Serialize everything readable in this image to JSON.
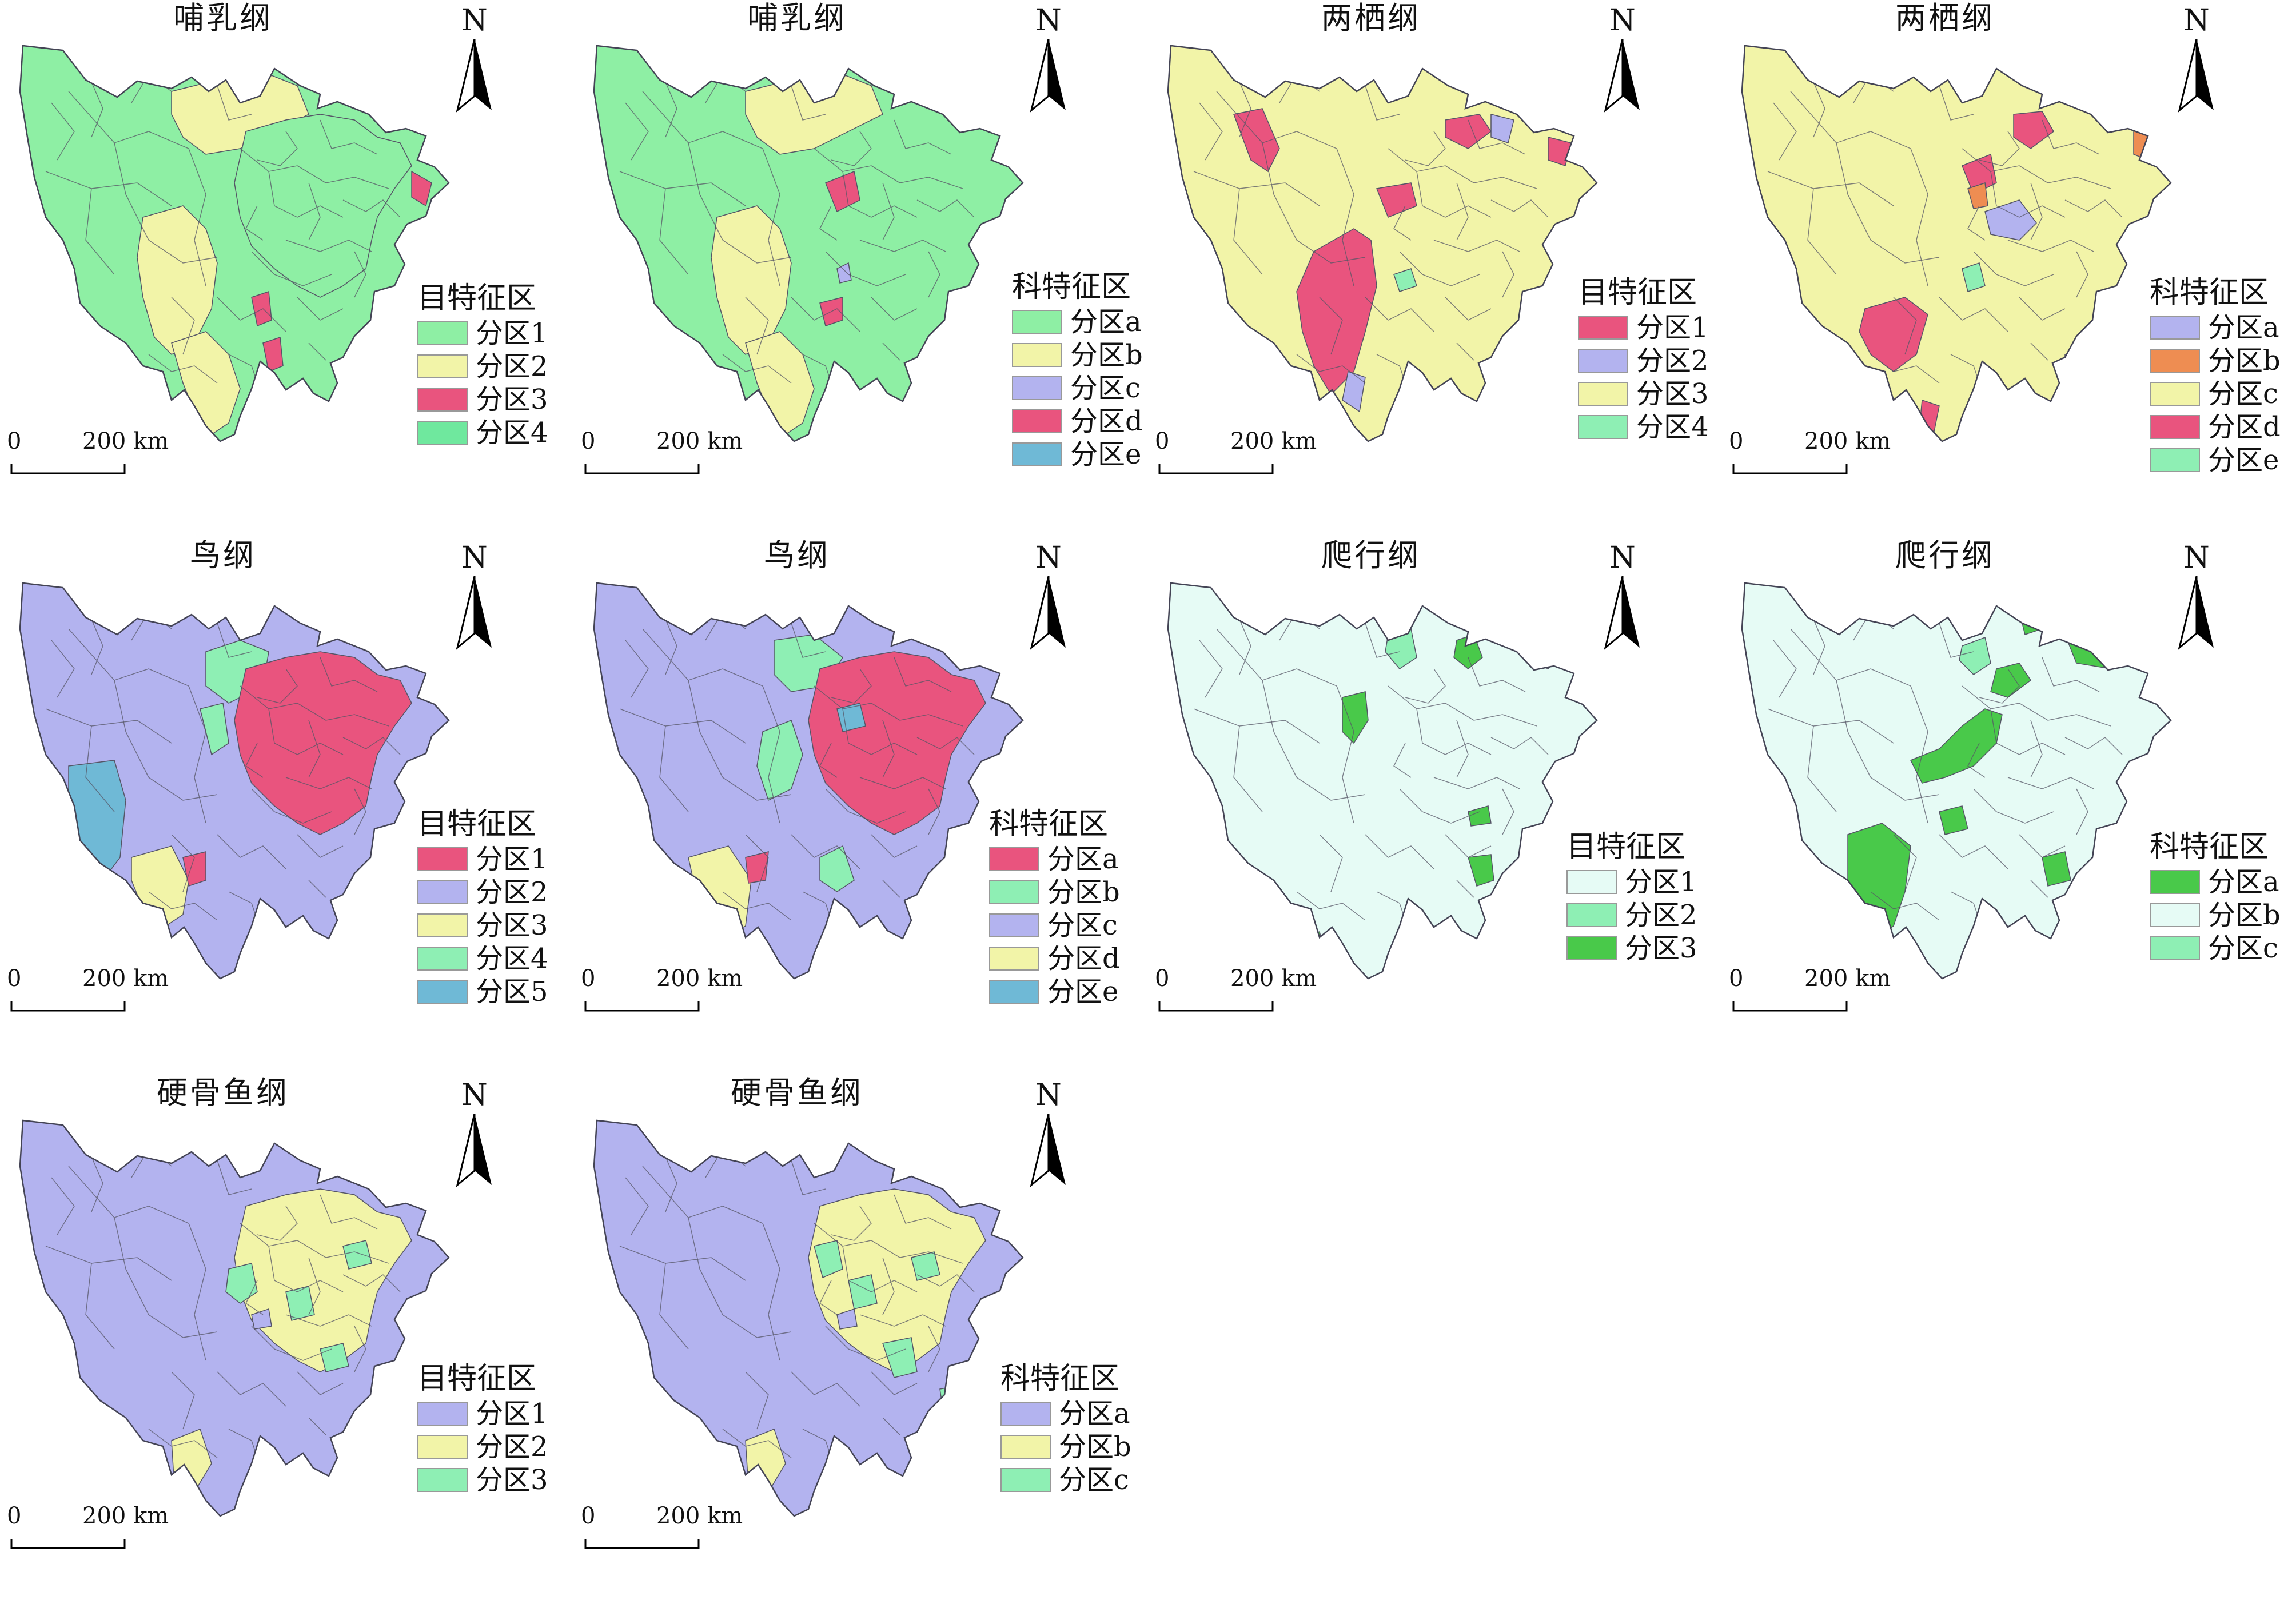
{
  "colors": {
    "mint": "#8eefa4",
    "yellow": "#f2f4a8",
    "pink": "#e9547e",
    "lavender": "#b3b3ef",
    "teal": "#6fb9d6",
    "orange": "#ee8d52",
    "green": "#49c94a",
    "pale": "#e6fbf5",
    "boundary": "#555566"
  },
  "scale_bar": {
    "zero": "0",
    "length_label": "200 km"
  },
  "north_label": "N",
  "panels": [
    {
      "title": "哺乳纲",
      "legend_title": "目特征区",
      "entries": [
        {
          "label": "分区1",
          "color": "#8eefa4"
        },
        {
          "label": "分区2",
          "color": "#f2f4a8"
        },
        {
          "label": "分区3",
          "color": "#e9547e"
        },
        {
          "label": "分区4",
          "color": "#6fe89e"
        }
      ]
    },
    {
      "title": "哺乳纲",
      "legend_title": "科特征区",
      "entries": [
        {
          "label": "分区a",
          "color": "#8eefa4"
        },
        {
          "label": "分区b",
          "color": "#f2f4a8"
        },
        {
          "label": "分区c",
          "color": "#b3b3ef"
        },
        {
          "label": "分区d",
          "color": "#e9547e"
        },
        {
          "label": "分区e",
          "color": "#6fb9d6"
        }
      ]
    },
    {
      "title": "两栖纲",
      "legend_title": "目特征区",
      "entries": [
        {
          "label": "分区1",
          "color": "#e9547e"
        },
        {
          "label": "分区2",
          "color": "#b3b3ef"
        },
        {
          "label": "分区3",
          "color": "#f2f4a8"
        },
        {
          "label": "分区4",
          "color": "#8eefb4"
        }
      ]
    },
    {
      "title": "两栖纲",
      "legend_title": "科特征区",
      "entries": [
        {
          "label": "分区a",
          "color": "#b3b3ef"
        },
        {
          "label": "分区b",
          "color": "#ee8d52"
        },
        {
          "label": "分区c",
          "color": "#f2f4a8"
        },
        {
          "label": "分区d",
          "color": "#e9547e"
        },
        {
          "label": "分区e",
          "color": "#8eefb4"
        }
      ]
    },
    {
      "title": "鸟纲",
      "legend_title": "目特征区",
      "entries": [
        {
          "label": "分区1",
          "color": "#e9547e"
        },
        {
          "label": "分区2",
          "color": "#b3b3ef"
        },
        {
          "label": "分区3",
          "color": "#f2f4a8"
        },
        {
          "label": "分区4",
          "color": "#8eefb4"
        },
        {
          "label": "分区5",
          "color": "#6fb9d6"
        }
      ]
    },
    {
      "title": "鸟纲",
      "legend_title": "科特征区",
      "entries": [
        {
          "label": "分区a",
          "color": "#e9547e"
        },
        {
          "label": "分区b",
          "color": "#8eefb4"
        },
        {
          "label": "分区c",
          "color": "#b3b3ef"
        },
        {
          "label": "分区d",
          "color": "#f2f4a8"
        },
        {
          "label": "分区e",
          "color": "#6fb9d6"
        }
      ]
    },
    {
      "title": "爬行纲",
      "legend_title": "目特征区",
      "entries": [
        {
          "label": "分区1",
          "color": "#e6fbf5"
        },
        {
          "label": "分区2",
          "color": "#8eefb4"
        },
        {
          "label": "分区3",
          "color": "#49c94a"
        }
      ]
    },
    {
      "title": "爬行纲",
      "legend_title": "科特征区",
      "entries": [
        {
          "label": "分区a",
          "color": "#49c94a"
        },
        {
          "label": "分区b",
          "color": "#e6fbf5"
        },
        {
          "label": "分区c",
          "color": "#8eefb4"
        }
      ]
    },
    {
      "title": "硬骨鱼纲",
      "legend_title": "目特征区",
      "entries": [
        {
          "label": "分区1",
          "color": "#b3b3ef"
        },
        {
          "label": "分区2",
          "color": "#f2f4a8"
        },
        {
          "label": "分区3",
          "color": "#8eefb4"
        }
      ]
    },
    {
      "title": "硬骨鱼纲",
      "legend_title": "科特征区",
      "entries": [
        {
          "label": "分区a",
          "color": "#b3b3ef"
        },
        {
          "label": "分区b",
          "color": "#f2f4a8"
        },
        {
          "label": "分区c",
          "color": "#8eefb4"
        }
      ]
    }
  ]
}
